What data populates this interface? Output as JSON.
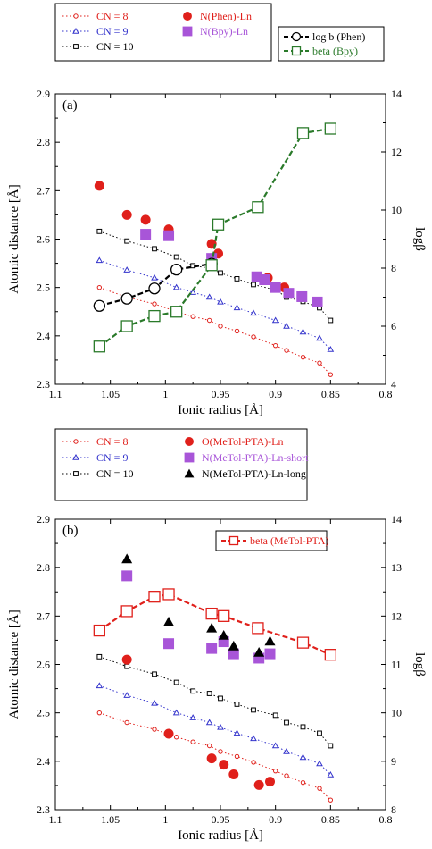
{
  "chart_data": [
    {
      "type": "scatter",
      "panel_label": "(a)",
      "xlabel": "Ionic radius [Å]",
      "ylabel": "Atomic distance [Å]",
      "y2label": "logβ",
      "xlim": [
        1.1,
        0.8
      ],
      "ylim": [
        2.3,
        2.9
      ],
      "y2lim": [
        4,
        14
      ],
      "xticks": [
        "1.1",
        "1.05",
        "1",
        "0.95",
        "0.9",
        "0.85",
        "0.8"
      ],
      "yticks": [
        "2.3",
        "2.4",
        "2.5",
        "2.6",
        "2.7",
        "2.8",
        "2.9"
      ],
      "y2ticks": [
        "4",
        "6",
        "8",
        "10",
        "12",
        "14"
      ],
      "legend1": [
        {
          "label": "CN = 8",
          "color": "#e0201b",
          "marker": "circle-small",
          "line": "dotted"
        },
        {
          "label": "CN = 9",
          "color": "#3333cc",
          "marker": "triangle-small",
          "line": "dotted"
        },
        {
          "label": "CN = 10",
          "color": "#000000",
          "marker": "square-small",
          "line": "dotted"
        },
        {
          "label": "N(Phen)-Ln",
          "color": "#e0201b",
          "marker": "circle-filled"
        },
        {
          "label": "N(Bpy)-Ln",
          "color": "#a855d8",
          "marker": "square-filled"
        }
      ],
      "legend2": [
        {
          "label": "log b (Phen)",
          "color": "#000000",
          "marker": "circle-open",
          "line": "dashed"
        },
        {
          "label": "beta (Bpy)",
          "color": "#2a7a2a",
          "marker": "square-open",
          "line": "dashed"
        }
      ],
      "series": [
        {
          "name": "CN = 8",
          "kind": "fit",
          "color": "#e0201b",
          "marker": "circle-small",
          "axis": "left",
          "x": [
            1.06,
            1.035,
            1.01,
            0.99,
            0.975,
            0.96,
            0.95,
            0.935,
            0.92,
            0.9,
            0.89,
            0.875,
            0.86,
            0.85
          ],
          "y": [
            2.5,
            2.48,
            2.466,
            2.45,
            2.44,
            2.432,
            2.42,
            2.41,
            2.398,
            2.38,
            2.37,
            2.356,
            2.344,
            2.32
          ]
        },
        {
          "name": "CN = 9",
          "kind": "fit",
          "color": "#3333cc",
          "marker": "triangle-small",
          "axis": "left",
          "x": [
            1.06,
            1.035,
            1.01,
            0.99,
            0.975,
            0.96,
            0.95,
            0.935,
            0.92,
            0.9,
            0.89,
            0.875,
            0.86,
            0.85
          ],
          "y": [
            2.556,
            2.536,
            2.52,
            2.5,
            2.49,
            2.48,
            2.47,
            2.458,
            2.447,
            2.432,
            2.42,
            2.408,
            2.395,
            2.372
          ]
        },
        {
          "name": "CN = 10",
          "kind": "fit",
          "color": "#000000",
          "marker": "square-small",
          "axis": "left",
          "x": [
            1.06,
            1.035,
            1.01,
            0.99,
            0.975,
            0.96,
            0.95,
            0.935,
            0.92,
            0.9,
            0.89,
            0.875,
            0.86,
            0.85
          ],
          "y": [
            2.616,
            2.596,
            2.58,
            2.563,
            2.545,
            2.54,
            2.53,
            2.518,
            2.506,
            2.495,
            2.48,
            2.471,
            2.458,
            2.432
          ]
        },
        {
          "name": "N(Phen)-Ln",
          "kind": "points",
          "color": "#e0201b",
          "marker": "circle-filled",
          "axis": "left",
          "x": [
            1.06,
            1.035,
            1.018,
            0.997,
            0.958,
            0.952,
            0.907,
            0.892
          ],
          "y": [
            2.71,
            2.65,
            2.64,
            2.62,
            2.59,
            2.57,
            2.52,
            2.5
          ]
        },
        {
          "name": "N(Bpy)-Ln",
          "kind": "points",
          "color": "#a855d8",
          "marker": "square-filled",
          "axis": "left",
          "x": [
            1.018,
            0.997,
            0.958,
            0.917,
            0.91,
            0.9,
            0.888,
            0.876,
            0.862
          ],
          "y": [
            2.61,
            2.607,
            2.56,
            2.522,
            2.516,
            2.5,
            2.488,
            2.481,
            2.47
          ]
        },
        {
          "name": "log b (Phen)",
          "kind": "line",
          "color": "#000000",
          "marker": "circle-open",
          "axis": "right",
          "x": [
            1.06,
            1.035,
            1.01,
            0.99,
            0.958
          ],
          "y": [
            6.7,
            6.95,
            7.3,
            7.95,
            8.15
          ]
        },
        {
          "name": "beta (Bpy)",
          "kind": "line",
          "color": "#2a7a2a",
          "marker": "square-open",
          "axis": "right",
          "x": [
            1.06,
            1.035,
            1.01,
            0.99,
            0.958,
            0.952,
            0.916,
            0.875,
            0.85
          ],
          "y": [
            5.3,
            6.0,
            6.35,
            6.5,
            8.1,
            9.5,
            10.1,
            12.65,
            12.8
          ]
        }
      ]
    },
    {
      "type": "scatter",
      "panel_label": "(b)",
      "xlabel": "Ionic radius [Å]",
      "ylabel": "Atomic distance [Å]",
      "y2label": "logβ",
      "xlim": [
        1.1,
        0.8
      ],
      "ylim": [
        2.3,
        2.9
      ],
      "y2lim": [
        8,
        14
      ],
      "xticks": [
        "1.1",
        "1.05",
        "1",
        "0.95",
        "0.9",
        "0.85",
        "0.8"
      ],
      "yticks": [
        "2.3",
        "2.4",
        "2.5",
        "2.6",
        "2.7",
        "2.8",
        "2.9"
      ],
      "y2ticks": [
        "8",
        "9",
        "10",
        "11",
        "12",
        "13",
        "14"
      ],
      "legend1": [
        {
          "label": "CN = 8",
          "color": "#e0201b",
          "marker": "circle-small",
          "line": "dotted"
        },
        {
          "label": "CN = 9",
          "color": "#3333cc",
          "marker": "triangle-small",
          "line": "dotted"
        },
        {
          "label": "CN = 10",
          "color": "#000000",
          "marker": "square-small",
          "line": "dotted"
        },
        {
          "label": "O(MeTol-PTA)-Ln",
          "color": "#e0201b",
          "marker": "circle-filled"
        },
        {
          "label": "N(MeTol-PTA)-Ln-short",
          "color": "#a855d8",
          "marker": "square-filled"
        },
        {
          "label": "N(MeTol-PTA)-Ln-long",
          "color": "#000000",
          "marker": "triangle-filled"
        }
      ],
      "legend2": [
        {
          "label": "beta (MeTol-PTA)",
          "color": "#e0201b",
          "marker": "square-open",
          "line": "dashed"
        }
      ],
      "series": [
        {
          "name": "CN = 8",
          "kind": "fit",
          "color": "#e0201b",
          "marker": "circle-small",
          "axis": "left",
          "x": [
            1.06,
            1.035,
            1.01,
            0.99,
            0.975,
            0.96,
            0.95,
            0.935,
            0.92,
            0.9,
            0.89,
            0.875,
            0.86,
            0.85
          ],
          "y": [
            2.5,
            2.48,
            2.466,
            2.45,
            2.44,
            2.432,
            2.42,
            2.41,
            2.398,
            2.38,
            2.37,
            2.356,
            2.344,
            2.32
          ]
        },
        {
          "name": "CN = 9",
          "kind": "fit",
          "color": "#3333cc",
          "marker": "triangle-small",
          "axis": "left",
          "x": [
            1.06,
            1.035,
            1.01,
            0.99,
            0.975,
            0.96,
            0.95,
            0.935,
            0.92,
            0.9,
            0.89,
            0.875,
            0.86,
            0.85
          ],
          "y": [
            2.556,
            2.536,
            2.52,
            2.5,
            2.49,
            2.48,
            2.47,
            2.458,
            2.447,
            2.432,
            2.42,
            2.408,
            2.395,
            2.372
          ]
        },
        {
          "name": "CN = 10",
          "kind": "fit",
          "color": "#000000",
          "marker": "square-small",
          "axis": "left",
          "x": [
            1.06,
            1.035,
            1.01,
            0.99,
            0.975,
            0.96,
            0.95,
            0.935,
            0.92,
            0.9,
            0.89,
            0.875,
            0.86,
            0.85
          ],
          "y": [
            2.616,
            2.596,
            2.58,
            2.563,
            2.545,
            2.54,
            2.53,
            2.518,
            2.506,
            2.495,
            2.48,
            2.471,
            2.458,
            2.432
          ]
        },
        {
          "name": "O(MeTol-PTA)-Ln",
          "kind": "points",
          "color": "#e0201b",
          "marker": "circle-filled",
          "axis": "left",
          "x": [
            1.035,
            0.997,
            0.958,
            0.947,
            0.938,
            0.915,
            0.905
          ],
          "y": [
            2.61,
            2.457,
            2.406,
            2.393,
            2.373,
            2.351,
            2.358
          ]
        },
        {
          "name": "N(MeTol-PTA)-Ln-short",
          "kind": "points",
          "color": "#a855d8",
          "marker": "square-filled",
          "axis": "left",
          "x": [
            1.035,
            0.997,
            0.958,
            0.947,
            0.938,
            0.915,
            0.905
          ],
          "y": [
            2.783,
            2.643,
            2.633,
            2.647,
            2.622,
            2.613,
            2.622
          ]
        },
        {
          "name": "N(MeTol-PTA)-Ln-long",
          "kind": "points",
          "color": "#000000",
          "marker": "triangle-filled",
          "axis": "left",
          "x": [
            1.035,
            0.997,
            0.958,
            0.947,
            0.938,
            0.915,
            0.905
          ],
          "y": [
            2.818,
            2.688,
            2.675,
            2.66,
            2.638,
            2.625,
            2.648
          ]
        },
        {
          "name": "beta (MeTol-PTA)",
          "kind": "line",
          "color": "#e0201b",
          "marker": "square-open",
          "axis": "right",
          "x": [
            1.06,
            1.035,
            1.01,
            0.997,
            0.958,
            0.947,
            0.916,
            0.875,
            0.85
          ],
          "y": [
            11.7,
            12.1,
            12.4,
            12.45,
            12.05,
            12.0,
            11.75,
            11.45,
            11.2
          ]
        }
      ]
    }
  ]
}
